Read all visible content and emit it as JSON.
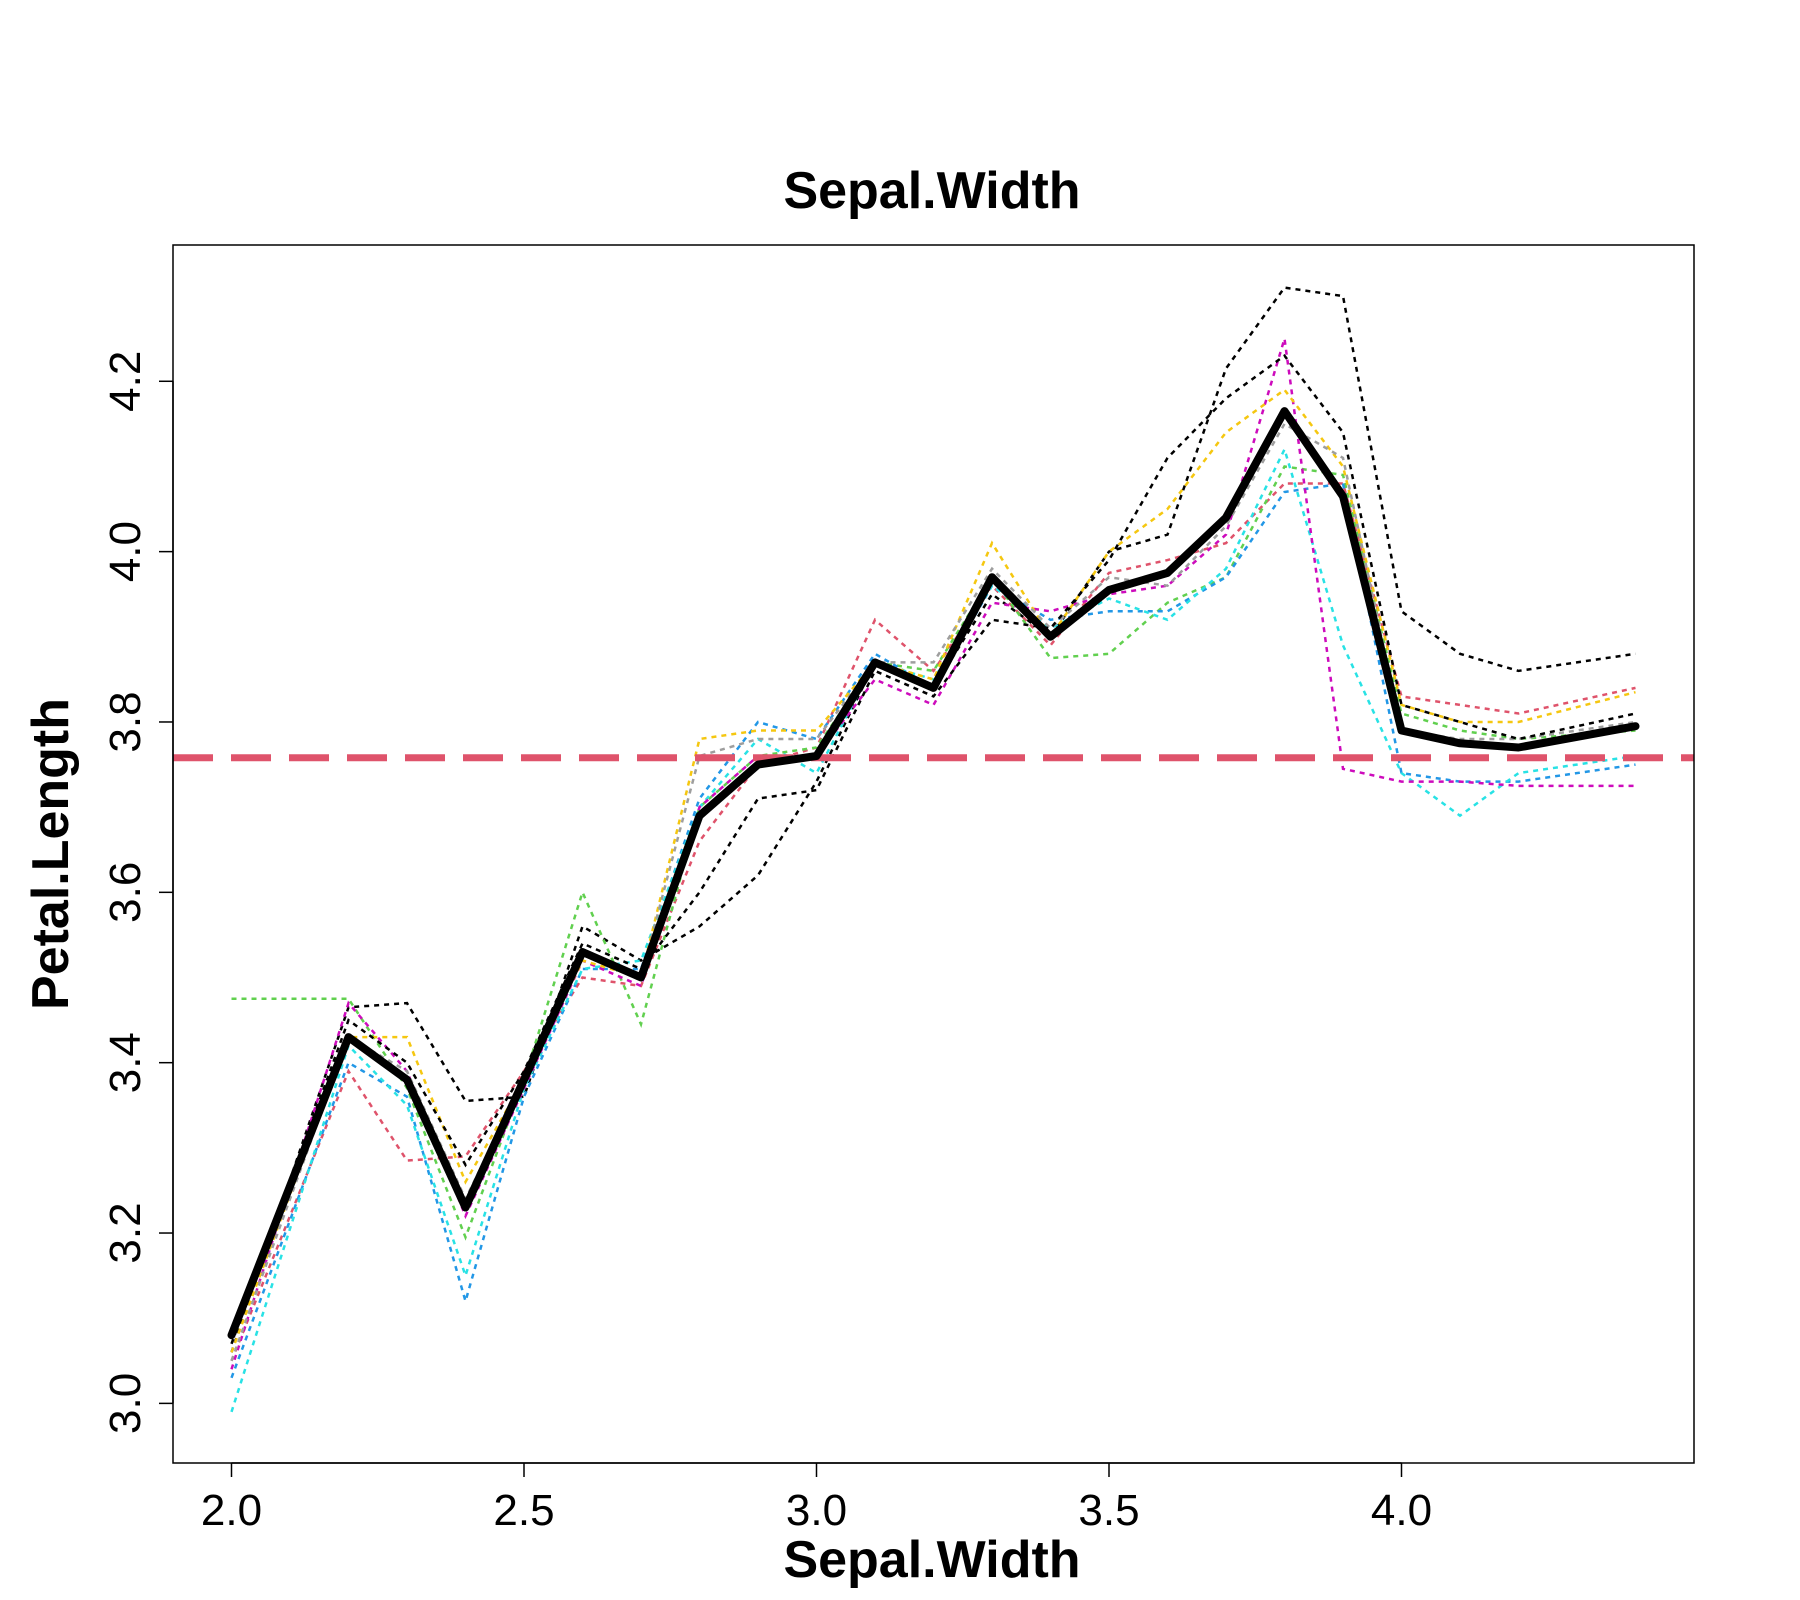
{
  "chart_data": {
    "type": "line",
    "title": "Sepal.Width",
    "xlabel": "Sepal.Width",
    "ylabel": "Petal.Length",
    "xlim": [
      1.9,
      4.5
    ],
    "ylim": [
      2.93,
      4.36
    ],
    "x_ticks": [
      "2.0",
      "2.5",
      "3.0",
      "3.5",
      "4.0"
    ],
    "y_ticks": [
      "3.0",
      "3.2",
      "3.4",
      "3.6",
      "3.8",
      "4.0",
      "4.2"
    ],
    "x": [
      2.0,
      2.2,
      2.3,
      2.4,
      2.5,
      2.6,
      2.7,
      2.8,
      2.9,
      3.0,
      3.1,
      3.2,
      3.3,
      3.4,
      3.5,
      3.6,
      3.7,
      3.8,
      3.9,
      4.0,
      4.1,
      4.2,
      4.4
    ],
    "reference_line": {
      "y": 3.758,
      "color": "#DF536B"
    },
    "main_series": {
      "color": "#000000",
      "values": [
        3.08,
        3.43,
        3.38,
        3.23,
        3.38,
        3.53,
        3.5,
        3.69,
        3.75,
        3.76,
        3.87,
        3.84,
        3.97,
        3.9,
        3.955,
        3.975,
        4.04,
        4.165,
        4.065,
        3.79,
        3.775,
        3.77,
        3.795
      ]
    },
    "series": [
      {
        "color": "#000000",
        "values": [
          3.06,
          3.465,
          3.47,
          3.355,
          3.36,
          3.56,
          3.52,
          3.56,
          3.62,
          3.73,
          3.87,
          3.84,
          3.95,
          3.9,
          4.0,
          4.02,
          4.215,
          4.31,
          4.3,
          3.93,
          3.88,
          3.86,
          3.88
        ]
      },
      {
        "color": "#DF536B",
        "values": [
          3.05,
          3.39,
          3.285,
          3.29,
          3.39,
          3.5,
          3.49,
          3.66,
          3.75,
          3.77,
          3.92,
          3.86,
          3.96,
          3.89,
          3.975,
          3.99,
          4.01,
          4.08,
          4.08,
          3.83,
          3.82,
          3.81,
          3.84
        ]
      },
      {
        "color": "#61D04F",
        "values": [
          3.475,
          3.475,
          3.37,
          3.195,
          3.38,
          3.6,
          3.445,
          3.7,
          3.76,
          3.77,
          3.87,
          3.86,
          3.97,
          3.875,
          3.88,
          3.94,
          3.97,
          4.1,
          4.09,
          3.81,
          3.79,
          3.78,
          3.79
        ]
      },
      {
        "color": "#2297E6",
        "values": [
          3.03,
          3.4,
          3.36,
          3.12,
          3.36,
          3.51,
          3.51,
          3.71,
          3.8,
          3.78,
          3.88,
          3.84,
          3.96,
          3.92,
          3.93,
          3.93,
          3.97,
          4.07,
          4.08,
          3.74,
          3.73,
          3.73,
          3.75
        ]
      },
      {
        "color": "#28E2E5",
        "values": [
          2.99,
          3.42,
          3.35,
          3.15,
          3.37,
          3.51,
          3.52,
          3.7,
          3.78,
          3.74,
          3.87,
          3.85,
          3.96,
          3.91,
          3.945,
          3.92,
          3.98,
          4.12,
          3.89,
          3.74,
          3.69,
          3.74,
          3.76
        ]
      },
      {
        "color": "#CD0BBC",
        "values": [
          3.04,
          3.47,
          3.39,
          3.22,
          3.37,
          3.52,
          3.49,
          3.7,
          3.76,
          3.76,
          3.85,
          3.82,
          3.94,
          3.93,
          3.95,
          3.96,
          4.02,
          4.25,
          3.745,
          3.73,
          3.73,
          3.725,
          3.725
        ]
      },
      {
        "color": "#F5C710",
        "values": [
          3.06,
          3.43,
          3.43,
          3.26,
          3.38,
          3.52,
          3.5,
          3.78,
          3.79,
          3.79,
          3.87,
          3.85,
          4.01,
          3.9,
          4.0,
          4.05,
          4.14,
          4.19,
          4.1,
          3.82,
          3.8,
          3.8,
          3.835
        ]
      },
      {
        "color": "#9E9E9E",
        "values": [
          3.05,
          3.43,
          3.39,
          3.24,
          3.38,
          3.53,
          3.5,
          3.76,
          3.78,
          3.78,
          3.87,
          3.87,
          3.98,
          3.91,
          3.97,
          3.96,
          4.03,
          4.15,
          4.11,
          3.79,
          3.78,
          3.78,
          3.8
        ]
      },
      {
        "color": "#000000",
        "values": [
          3.07,
          3.45,
          3.4,
          3.28,
          3.39,
          3.54,
          3.51,
          3.6,
          3.71,
          3.72,
          3.86,
          3.83,
          3.92,
          3.91,
          3.99,
          4.11,
          4.18,
          4.23,
          4.14,
          3.82,
          3.8,
          3.78,
          3.81
        ]
      }
    ]
  }
}
